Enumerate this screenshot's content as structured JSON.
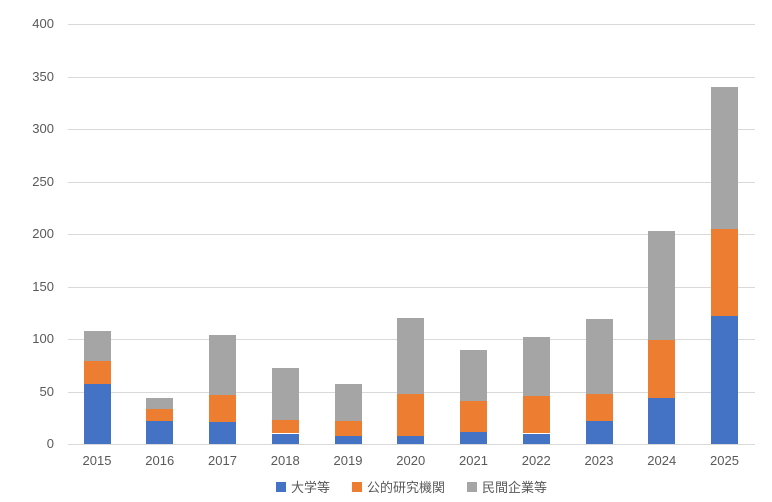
{
  "chart_data": {
    "type": "bar",
    "stacked": true,
    "title": "",
    "xlabel": "",
    "ylabel": "",
    "categories": [
      "2015",
      "2016",
      "2017",
      "2018",
      "2019",
      "2020",
      "2021",
      "2022",
      "2023",
      "2024",
      "2025"
    ],
    "series": [
      {
        "name": "大学等",
        "color": "#4472C4",
        "values": [
          57,
          22,
          21,
          10,
          8,
          8,
          11,
          10,
          22,
          44,
          122
        ]
      },
      {
        "name": "公的研究機関",
        "color": "#ED7D31",
        "values": [
          22,
          11,
          26,
          13,
          14,
          40,
          30,
          36,
          26,
          55,
          83
        ]
      },
      {
        "name": "民間企業等",
        "color": "#A5A5A5",
        "values": [
          29,
          11,
          57,
          49,
          35,
          72,
          49,
          56,
          71,
          104,
          135
        ]
      }
    ],
    "totals": [
      108,
      44,
      104,
      72,
      57,
      120,
      90,
      102,
      119,
      203,
      340
    ],
    "ylim": [
      0,
      400
    ],
    "ytick_interval": 50,
    "yticks": [
      "0",
      "50",
      "100",
      "150",
      "200",
      "250",
      "300",
      "350",
      "400"
    ],
    "grid": true,
    "legend_position": "bottom",
    "colors": {
      "gridline": "#d9d9d9",
      "axis_text": "#595959",
      "background": "#ffffff"
    }
  }
}
